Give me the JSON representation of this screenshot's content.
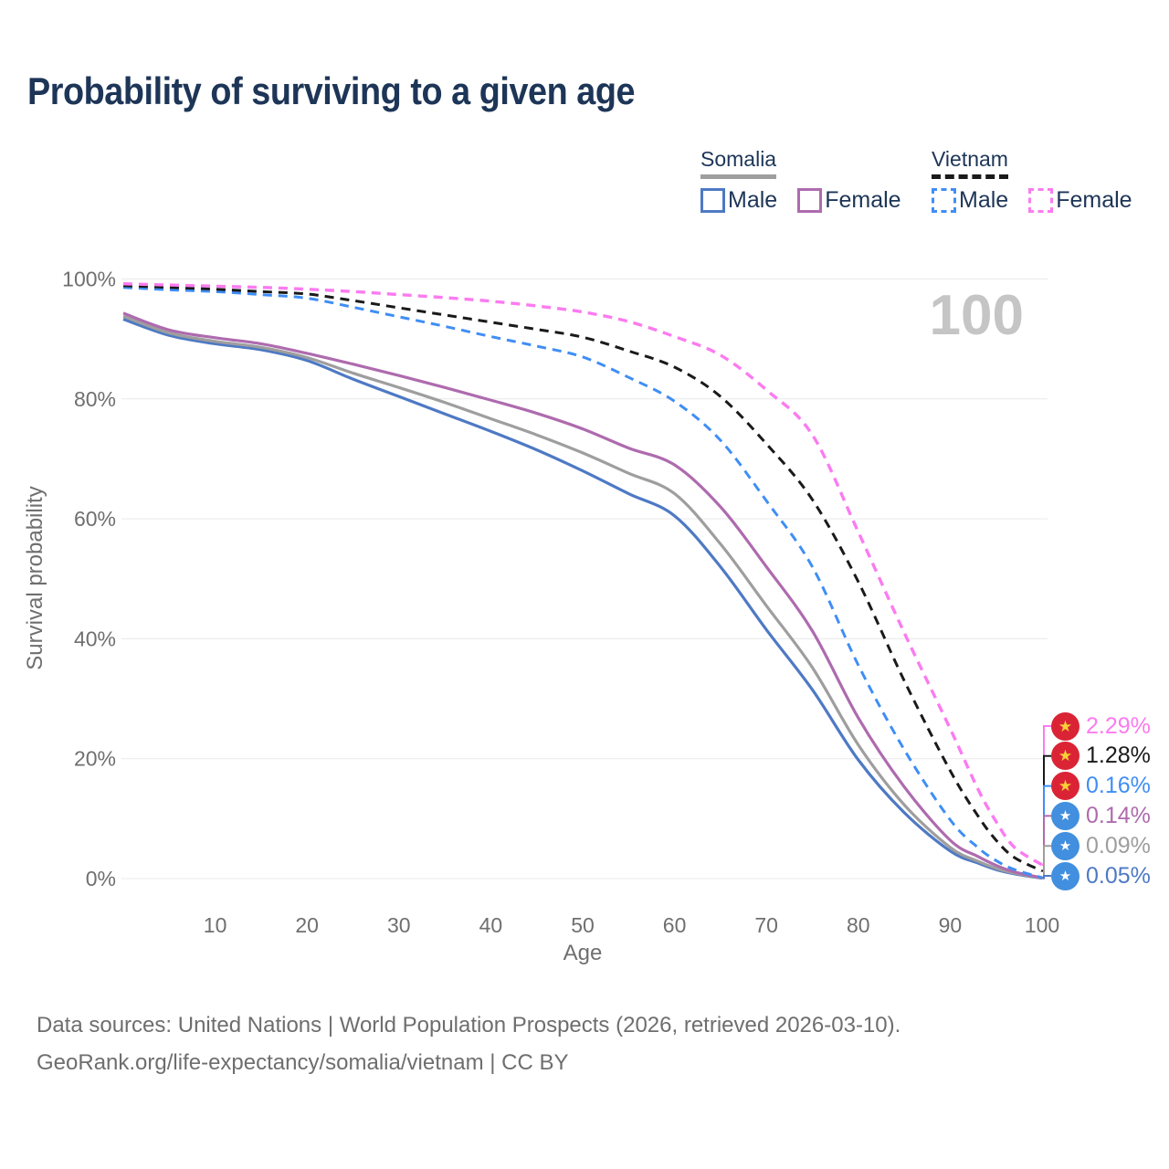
{
  "title": "Probability of surviving to a given age",
  "watermark": "100",
  "legend": {
    "groups": [
      {
        "country": "Somalia",
        "line_style": "solid",
        "line_color": "#9e9e9e",
        "items": [
          {
            "label": "Male",
            "color": "#4e79c4",
            "dash": "solid"
          },
          {
            "label": "Female",
            "color": "#ae6bae",
            "dash": "solid"
          }
        ]
      },
      {
        "country": "Vietnam",
        "line_style": "dashed",
        "line_color": "#1a1a1a",
        "items": [
          {
            "label": "Male",
            "color": "#3f8ef5",
            "dash": "dashed"
          },
          {
            "label": "Female",
            "color": "#fb7bf0",
            "dash": "dashed"
          }
        ]
      }
    ]
  },
  "chart_data": {
    "type": "line",
    "title": "Probability of surviving to a given age",
    "xlabel": "Age",
    "ylabel": "Survival probability",
    "xlim": [
      0,
      100
    ],
    "ylim": [
      0,
      100
    ],
    "grid": "horizontal-only",
    "x_ticks": [
      10,
      20,
      30,
      40,
      50,
      60,
      70,
      80,
      90,
      100
    ],
    "y_ticks": [
      0,
      20,
      40,
      60,
      80,
      100
    ],
    "y_tick_labels": [
      "0%",
      "20%",
      "40%",
      "60%",
      "80%",
      "100%"
    ],
    "x": [
      0,
      5,
      10,
      15,
      20,
      25,
      30,
      35,
      40,
      45,
      50,
      55,
      60,
      65,
      70,
      75,
      80,
      85,
      90,
      93,
      95,
      97,
      100
    ],
    "series": [
      {
        "name": "Somalia Male",
        "country": "Somalia",
        "sex": "Male",
        "color": "#4e79c4",
        "dash": "solid",
        "width": 3.2,
        "values": [
          93.3,
          90.6,
          89.2,
          88.2,
          86.4,
          83.3,
          80.4,
          77.5,
          74.6,
          71.5,
          68.0,
          64.2,
          60.5,
          52.0,
          41.5,
          31.5,
          19.8,
          11.0,
          4.6,
          2.6,
          1.5,
          0.8,
          0.05
        ]
      },
      {
        "name": "Somalia Both sexes",
        "country": "Somalia",
        "sex": "Both",
        "color": "#9e9e9e",
        "dash": "solid",
        "width": 3.2,
        "values": [
          93.8,
          91.0,
          89.6,
          88.6,
          86.9,
          84.3,
          81.9,
          79.4,
          76.7,
          74.0,
          71.0,
          67.6,
          64.2,
          55.8,
          45.5,
          35.2,
          22.3,
          12.3,
          5.2,
          2.9,
          1.7,
          0.9,
          0.09
        ]
      },
      {
        "name": "Somalia Female",
        "country": "Somalia",
        "sex": "Female",
        "color": "#ae6bae",
        "dash": "solid",
        "width": 3.2,
        "values": [
          94.3,
          91.5,
          90.2,
          89.2,
          87.6,
          85.8,
          83.9,
          81.9,
          79.8,
          77.6,
          75.0,
          71.8,
          69.0,
          62.0,
          52.0,
          41.3,
          26.8,
          15.3,
          6.4,
          3.7,
          2.2,
          1.1,
          0.14
        ]
      },
      {
        "name": "Vietnam Male",
        "country": "Vietnam",
        "sex": "Male",
        "color": "#3f8ef5",
        "dash": "dashed",
        "width": 3.0,
        "values": [
          98.6,
          98.2,
          97.9,
          97.4,
          96.8,
          95.3,
          93.7,
          92.1,
          90.4,
          88.8,
          87.0,
          83.6,
          79.6,
          73.1,
          63.0,
          52.0,
          35.6,
          21.5,
          9.8,
          5.2,
          3.0,
          1.5,
          0.16
        ]
      },
      {
        "name": "Vietnam Both sexes",
        "country": "Vietnam",
        "sex": "Both",
        "color": "#1a1a1a",
        "dash": "dashed",
        "width": 3.0,
        "values": [
          98.9,
          98.6,
          98.3,
          97.9,
          97.5,
          96.4,
          95.2,
          94.0,
          92.8,
          91.6,
          90.3,
          88.0,
          85.3,
          80.4,
          72.5,
          63.2,
          49.5,
          33.0,
          18.0,
          10.5,
          6.4,
          3.5,
          1.28
        ]
      },
      {
        "name": "Vietnam Female",
        "country": "Vietnam",
        "sex": "Female",
        "color": "#fb7bf0",
        "dash": "dashed",
        "width": 3.4,
        "values": [
          99.2,
          99.0,
          98.8,
          98.6,
          98.3,
          97.9,
          97.4,
          96.9,
          96.3,
          95.5,
          94.5,
          92.9,
          90.4,
          87.3,
          81.5,
          74.0,
          57.8,
          41.0,
          25.0,
          15.0,
          9.5,
          5.2,
          2.29
        ]
      }
    ],
    "end_labels": [
      {
        "text": "2.29%",
        "color": "#fb7bf0",
        "flag": "vietnam",
        "series": "Vietnam Female"
      },
      {
        "text": "1.28%",
        "color": "#1a1a1a",
        "flag": "vietnam",
        "series": "Vietnam Both sexes"
      },
      {
        "text": "0.16%",
        "color": "#3f8ef5",
        "flag": "vietnam",
        "series": "Vietnam Male"
      },
      {
        "text": "0.14%",
        "color": "#ae6bae",
        "flag": "somalia",
        "series": "Somalia Female"
      },
      {
        "text": "0.09%",
        "color": "#9e9e9e",
        "flag": "somalia",
        "series": "Somalia Both sexes"
      },
      {
        "text": "0.05%",
        "color": "#4e79c4",
        "flag": "somalia",
        "series": "Somalia Male"
      }
    ],
    "flag_colors": {
      "vietnam": {
        "bg": "#da2435",
        "star": "#f7d038"
      },
      "somalia": {
        "bg": "#418fde",
        "star": "#ffffff"
      }
    }
  },
  "footer": {
    "line1": "Data sources: United Nations | World Population Prospects (2026, retrieved 2026-03-10).",
    "line2": "GeoRank.org/life-expectancy/somalia/vietnam | CC BY"
  }
}
